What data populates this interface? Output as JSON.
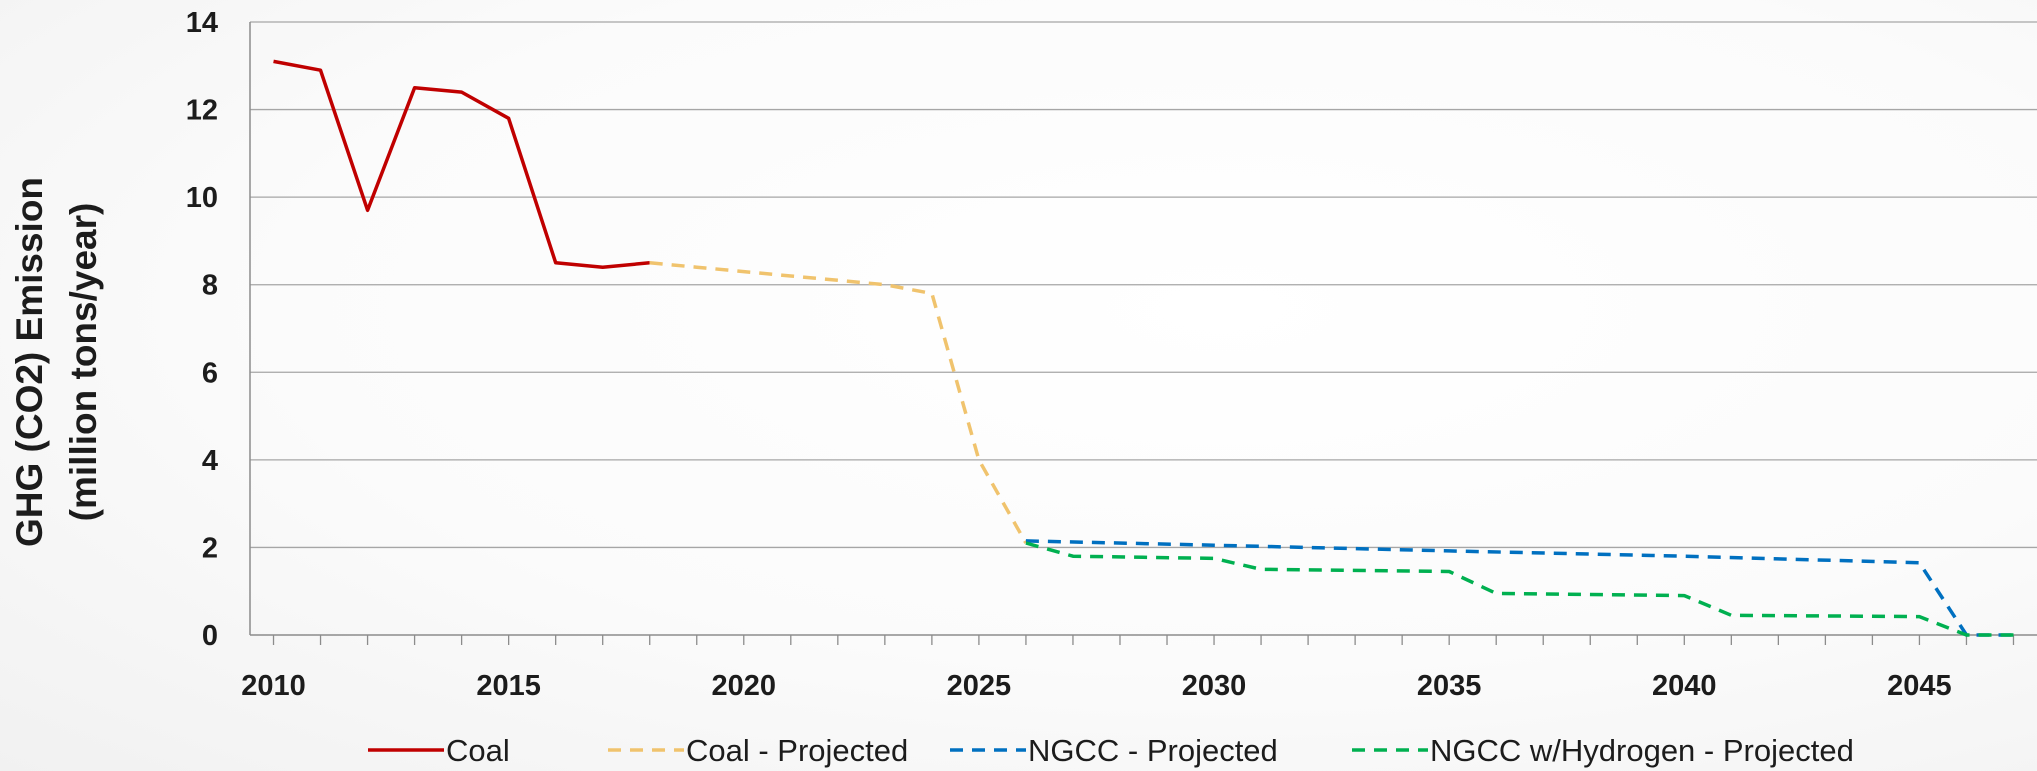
{
  "chart_data": {
    "type": "line",
    "ylabel_line1": "GHG (CO2) Emission",
    "ylabel_line2": "(million tons/year)",
    "xlim": [
      2009.5,
      2047.5
    ],
    "ylim": [
      0,
      14
    ],
    "x_ticks": [
      2010,
      2015,
      2020,
      2025,
      2030,
      2035,
      2040,
      2045
    ],
    "y_ticks": [
      0,
      2,
      4,
      6,
      8,
      10,
      12,
      14
    ],
    "grid": "horizontal",
    "legend_position": "bottom",
    "series": [
      {
        "name": "Coal",
        "color": "#c00000",
        "dash": "solid",
        "points": [
          [
            2010,
            13.1
          ],
          [
            2011,
            12.9
          ],
          [
            2012,
            9.7
          ],
          [
            2013,
            12.5
          ],
          [
            2014,
            12.4
          ],
          [
            2015,
            11.8
          ],
          [
            2016,
            8.5
          ],
          [
            2017,
            8.4
          ],
          [
            2018,
            8.5
          ]
        ]
      },
      {
        "name": "Coal - Projected",
        "color": "#f0c36d",
        "dash": "dashed",
        "points": [
          [
            2018,
            8.5
          ],
          [
            2019,
            8.4
          ],
          [
            2020,
            8.3
          ],
          [
            2021,
            8.2
          ],
          [
            2022,
            8.1
          ],
          [
            2023,
            8.0
          ],
          [
            2024,
            7.8
          ],
          [
            2025,
            4.0
          ],
          [
            2026,
            2.1
          ]
        ]
      },
      {
        "name": "NGCC - Projected",
        "color": "#0070c0",
        "dash": "dashed",
        "points": [
          [
            2026,
            2.15
          ],
          [
            2030,
            2.05
          ],
          [
            2035,
            1.92
          ],
          [
            2040,
            1.8
          ],
          [
            2045,
            1.65
          ],
          [
            2046,
            0.0
          ],
          [
            2047,
            0.0
          ]
        ]
      },
      {
        "name": "NGCC w/Hydrogen - Projected",
        "color": "#00b050",
        "dash": "dashed",
        "points": [
          [
            2026,
            2.1
          ],
          [
            2027,
            1.8
          ],
          [
            2030,
            1.75
          ],
          [
            2031,
            1.5
          ],
          [
            2035,
            1.45
          ],
          [
            2036,
            0.95
          ],
          [
            2040,
            0.9
          ],
          [
            2041,
            0.45
          ],
          [
            2045,
            0.42
          ],
          [
            2046,
            0.0
          ],
          [
            2047,
            0.0
          ]
        ]
      }
    ]
  }
}
